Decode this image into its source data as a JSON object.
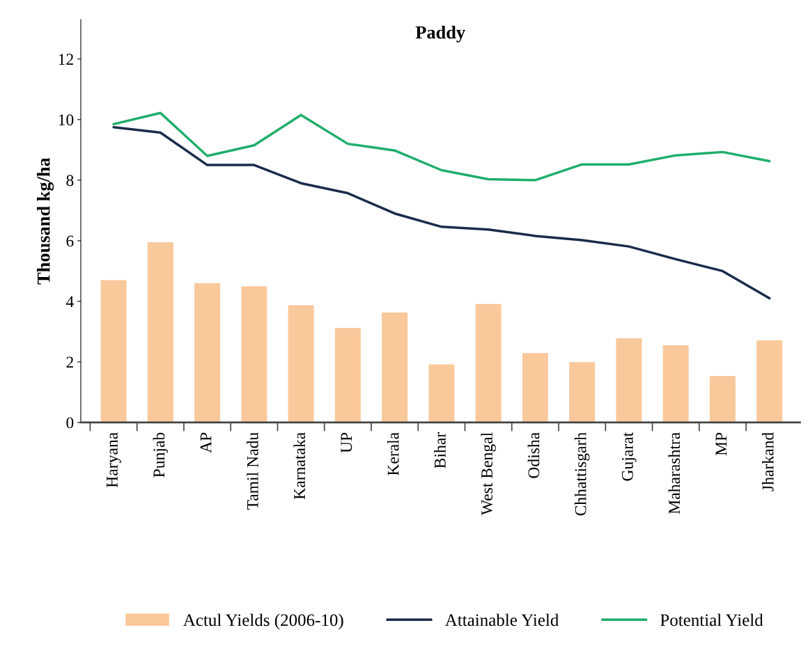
{
  "chart_data": {
    "type": "bar",
    "title": "Paddy",
    "ylabel": "Thousand kg/ha",
    "categories": [
      "Haryana",
      "Punjab",
      "AP",
      "Tamil Nadu",
      "Karnataka",
      "UP",
      "Kerala",
      "Bihar",
      "West Bengal",
      "Odisha",
      "Chhattisgarh",
      "Gujarat",
      "Maharashtra",
      "MP",
      "Jharkand"
    ],
    "series": [
      {
        "name": "Actul Yields (2006-10)",
        "color": "#f9c89b",
        "values": [
          4.7,
          5.95,
          4.6,
          4.5,
          3.87,
          3.12,
          3.63,
          1.92,
          3.91,
          2.29,
          1.99,
          2.78,
          2.55,
          1.53,
          2.71
        ]
      },
      {
        "name": "Attainable Yield",
        "type": "line",
        "color": "#1a2b4a",
        "values": [
          9.75,
          9.57,
          8.5,
          8.5,
          7.9,
          7.57,
          6.9,
          6.46,
          6.37,
          6.16,
          6.02,
          5.81,
          5.39,
          5.0,
          4.1
        ]
      },
      {
        "name": "Potential Yield",
        "type": "line",
        "color": "#1fae6a",
        "values": [
          9.85,
          10.22,
          8.8,
          9.15,
          10.15,
          9.2,
          8.98,
          8.33,
          8.03,
          8.0,
          8.52,
          8.52,
          8.82,
          8.93,
          8.63
        ]
      }
    ],
    "ylim": [
      0,
      13.3
    ],
    "yticks": [
      0,
      2,
      4,
      6,
      8,
      10,
      12
    ],
    "grid": false,
    "legend": "bottom",
    "line_style": "solid",
    "marker": "none"
  }
}
